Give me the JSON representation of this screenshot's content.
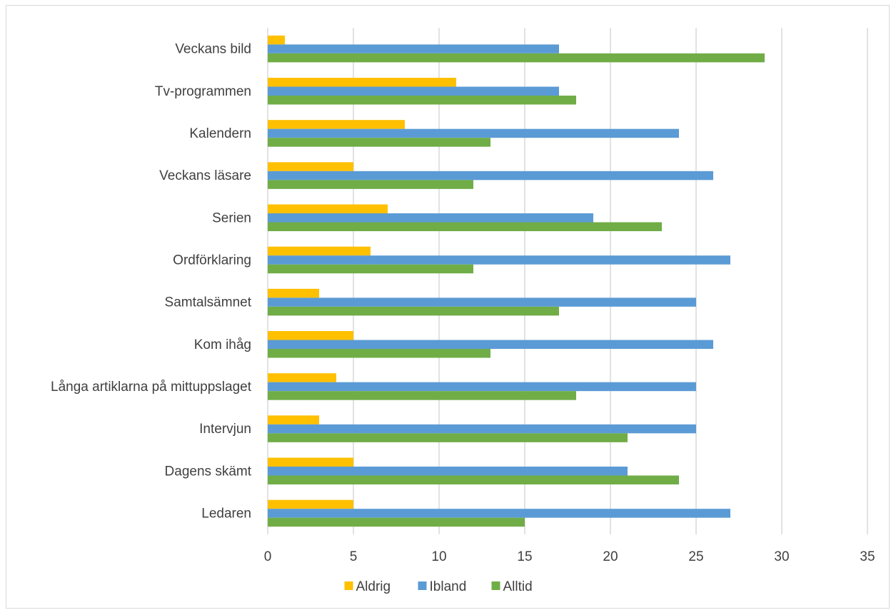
{
  "chart_data": {
    "type": "bar",
    "orientation": "horizontal",
    "categories": [
      "Veckans bild",
      "Tv-programmen",
      "Kalendern",
      "Veckans läsare",
      "Serien",
      "Ordförklaring",
      "Samtalsämnet",
      "Kom ihåg",
      "Långa artiklarna på mittuppslaget",
      "Intervjun",
      "Dagens skämt",
      "Ledaren"
    ],
    "series": [
      {
        "name": "Aldrig",
        "color": "#FFC000",
        "values": [
          1,
          11,
          8,
          5,
          7,
          6,
          3,
          5,
          4,
          3,
          5,
          5
        ]
      },
      {
        "name": "Ibland",
        "color": "#5B9BD5",
        "values": [
          17,
          17,
          24,
          26,
          19,
          27,
          25,
          26,
          25,
          25,
          21,
          27
        ]
      },
      {
        "name": "Alltid",
        "color": "#70AD47",
        "values": [
          29,
          18,
          13,
          12,
          23,
          12,
          17,
          13,
          18,
          21,
          24,
          15
        ]
      }
    ],
    "xlim": [
      0,
      35
    ],
    "xticks": [
      0,
      5,
      10,
      15,
      20,
      25,
      30,
      35
    ],
    "grid": true,
    "legend": "bottom"
  }
}
